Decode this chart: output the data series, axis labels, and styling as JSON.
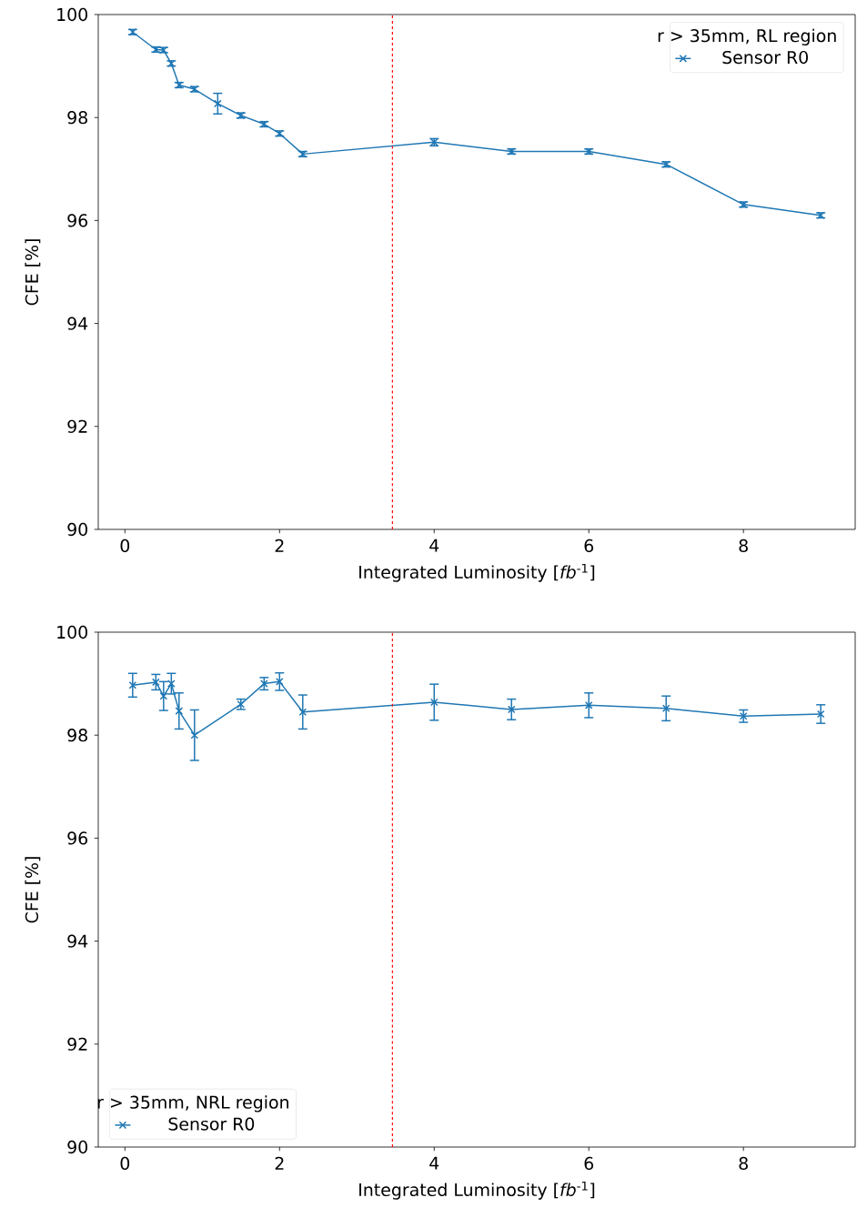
{
  "chart_data": [
    {
      "type": "line",
      "xlabel": "Integrated Luminosity [*fb*$^{-1}$]",
      "ylabel": "CFE [%]",
      "legend_title": "r > 35mm, RL region",
      "legend": "top right",
      "marker": "cross",
      "line_style": "solid",
      "grid": false,
      "xlim": [
        -0.345,
        9.445
      ],
      "ylim": [
        90,
        100
      ],
      "xticks": [
        0,
        2,
        4,
        6,
        8
      ],
      "yticks": [
        90,
        92,
        94,
        96,
        98,
        100
      ],
      "ref_lines": [
        {
          "axis": "x",
          "value": 3.46,
          "color": "#ff0000",
          "line_style": "dashed"
        }
      ],
      "series": [
        {
          "name": "Sensor R0",
          "color": "#1f77b4",
          "x": [
            0.1,
            0.4,
            0.5,
            0.6,
            0.7,
            0.9,
            1.2,
            1.5,
            1.8,
            2.0,
            2.3,
            4,
            5,
            6,
            7,
            8,
            9
          ],
          "values": [
            99.66,
            99.32,
            99.31,
            99.05,
            98.63,
            98.55,
            98.27,
            98.04,
            97.87,
            97.69,
            97.29,
            97.52,
            97.34,
            97.34,
            97.09,
            96.31,
            96.1
          ],
          "errors": [
            0.05,
            0.05,
            0.05,
            0.05,
            0.05,
            0.05,
            0.2,
            0.05,
            0.05,
            0.05,
            0.05,
            0.07,
            0.05,
            0.05,
            0.05,
            0.05,
            0.05
          ]
        }
      ]
    },
    {
      "type": "line",
      "xlabel": "Integrated Luminosity [*fb*$^{-1}$]",
      "ylabel": "CFE [%]",
      "legend_title": "r > 35mm, NRL region",
      "legend": "bottom left",
      "marker": "cross",
      "line_style": "solid",
      "grid": false,
      "xlim": [
        -0.345,
        9.445
      ],
      "ylim": [
        90,
        100
      ],
      "xticks": [
        0,
        2,
        4,
        6,
        8
      ],
      "yticks": [
        90,
        92,
        94,
        96,
        98,
        100
      ],
      "ref_lines": [
        {
          "axis": "x",
          "value": 3.46,
          "color": "#ff0000",
          "line_style": "dashed"
        }
      ],
      "series": [
        {
          "name": "Sensor R0",
          "color": "#1f77b4",
          "x": [
            0.1,
            0.4,
            0.5,
            0.6,
            0.7,
            0.9,
            1.5,
            1.8,
            2.0,
            2.3,
            4,
            5,
            6,
            7,
            8,
            9
          ],
          "values": [
            98.97,
            99.03,
            98.76,
            99.0,
            98.47,
            98.0,
            98.6,
            99.0,
            99.04,
            98.45,
            98.64,
            98.5,
            98.58,
            98.52,
            98.37,
            98.41
          ],
          "errors": [
            0.23,
            0.15,
            0.28,
            0.2,
            0.35,
            0.49,
            0.1,
            0.12,
            0.17,
            0.33,
            0.35,
            0.2,
            0.24,
            0.24,
            0.12,
            0.18
          ]
        }
      ]
    }
  ]
}
